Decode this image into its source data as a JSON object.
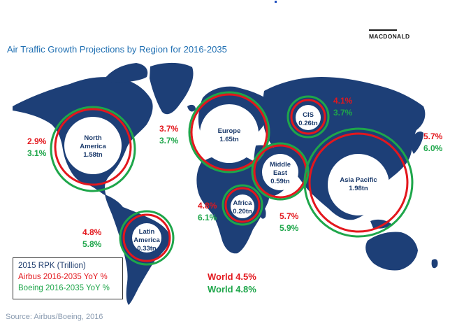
{
  "title": "Air Traffic Growth Projections by Region for 2016-2035",
  "logo": "MACDONALD",
  "source": "Source: Airbus/Boeing, 2016",
  "colors": {
    "map": "#1d3f77",
    "airbus": "#e3171d",
    "boeing": "#1ea64a",
    "title": "#1f6fb2"
  },
  "regions": [
    {
      "name": "North America",
      "line1": "North",
      "line2": "America",
      "value": "1.58tn",
      "airbus": "2.9%",
      "boeing": "3.1%"
    },
    {
      "name": "Europe",
      "line1": "Europe",
      "line2": "",
      "value": "1.65tn",
      "airbus": "3.7%",
      "boeing": "3.7%"
    },
    {
      "name": "CIS",
      "line1": "CIS",
      "line2": "",
      "value": "0.26tn",
      "airbus": "4.1%",
      "boeing": "3.7%"
    },
    {
      "name": "Middle East",
      "line1": "Middle",
      "line2": "East",
      "value": "0.59tn",
      "airbus": "5.7%",
      "boeing": "5.9%"
    },
    {
      "name": "Asia Pacific",
      "line1": "Asia Pacific",
      "line2": "",
      "value": "1.98tn",
      "airbus": "5.7%",
      "boeing": "6.0%"
    },
    {
      "name": "Africa",
      "line1": "Africa",
      "line2": "",
      "value": "0.20tn",
      "airbus": "4.8%",
      "boeing": "6.1%"
    },
    {
      "name": "Latin America",
      "line1": "Latin",
      "line2": "America",
      "value": "0.33tn",
      "airbus": "4.8%",
      "boeing": "5.8%"
    }
  ],
  "world": {
    "airbus": "World 4.5%",
    "boeing": "World 4.8%"
  },
  "legend": {
    "rpk": "2015 RPK (Trillion)",
    "airbus": "Airbus 2016-2035 YoY %",
    "boeing": "Boeing 2016-2035 YoY %"
  }
}
